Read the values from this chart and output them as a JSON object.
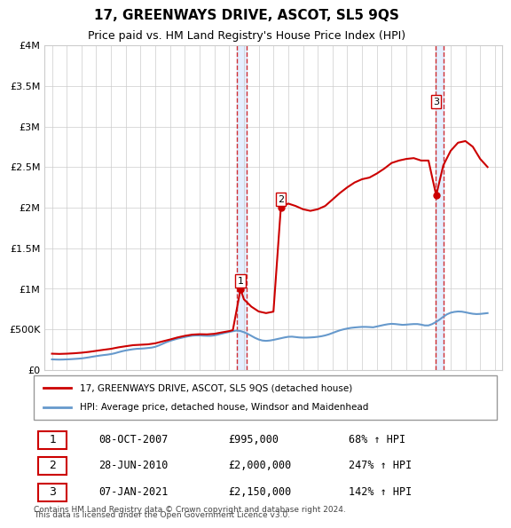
{
  "title": "17, GREENWAYS DRIVE, ASCOT, SL5 9QS",
  "subtitle": "Price paid vs. HM Land Registry's House Price Index (HPI)",
  "red_label": "17, GREENWAYS DRIVE, ASCOT, SL5 9QS (detached house)",
  "blue_label": "HPI: Average price, detached house, Windsor and Maidenhead",
  "footer1": "Contains HM Land Registry data © Crown copyright and database right 2024.",
  "footer2": "This data is licensed under the Open Government Licence v3.0.",
  "transactions": [
    {
      "num": 1,
      "date": "08-OCT-2007",
      "price": "£995,000",
      "hpi": "68% ↑ HPI",
      "year": 2007.77
    },
    {
      "num": 2,
      "date": "28-JUN-2010",
      "price": "£2,000,000",
      "hpi": "247% ↑ HPI",
      "year": 2010.5
    },
    {
      "num": 3,
      "date": "07-JAN-2021",
      "price": "£2,150,000",
      "hpi": "142% ↑ HPI",
      "year": 2021.02
    }
  ],
  "ylim": [
    0,
    4000000
  ],
  "yticks": [
    0,
    500000,
    1000000,
    1500000,
    2000000,
    2500000,
    3000000,
    3500000,
    4000000
  ],
  "ytick_labels": [
    "£0",
    "£500K",
    "£1M",
    "£1.5M",
    "£2M",
    "£2.5M",
    "£3M",
    "£3.5M",
    "£4M"
  ],
  "xlim_start": 1994.5,
  "xlim_end": 2025.5,
  "red_color": "#cc0000",
  "blue_color": "#6699cc",
  "shaded_regions": [
    {
      "start": 2007.5,
      "end": 2008.2
    },
    {
      "start": 2021.0,
      "end": 2021.5
    }
  ],
  "hpi_data": {
    "years": [
      1995,
      1995.25,
      1995.5,
      1995.75,
      1996,
      1996.25,
      1996.5,
      1996.75,
      1997,
      1997.25,
      1997.5,
      1997.75,
      1998,
      1998.25,
      1998.5,
      1998.75,
      1999,
      1999.25,
      1999.5,
      1999.75,
      2000,
      2000.25,
      2000.5,
      2000.75,
      2001,
      2001.25,
      2001.5,
      2001.75,
      2002,
      2002.25,
      2002.5,
      2002.75,
      2003,
      2003.25,
      2003.5,
      2003.75,
      2004,
      2004.25,
      2004.5,
      2004.75,
      2005,
      2005.25,
      2005.5,
      2005.75,
      2006,
      2006.25,
      2006.5,
      2006.75,
      2007,
      2007.25,
      2007.5,
      2007.75,
      2008,
      2008.25,
      2008.5,
      2008.75,
      2009,
      2009.25,
      2009.5,
      2009.75,
      2010,
      2010.25,
      2010.5,
      2010.75,
      2011,
      2011.25,
      2011.5,
      2011.75,
      2012,
      2012.25,
      2012.5,
      2012.75,
      2013,
      2013.25,
      2013.5,
      2013.75,
      2014,
      2014.25,
      2014.5,
      2014.75,
      2015,
      2015.25,
      2015.5,
      2015.75,
      2016,
      2016.25,
      2016.5,
      2016.75,
      2017,
      2017.25,
      2017.5,
      2017.75,
      2018,
      2018.25,
      2018.5,
      2018.75,
      2019,
      2019.25,
      2019.5,
      2019.75,
      2020,
      2020.25,
      2020.5,
      2020.75,
      2021,
      2021.25,
      2021.5,
      2021.75,
      2022,
      2022.25,
      2022.5,
      2022.75,
      2023,
      2023.25,
      2023.5,
      2023.75,
      2024,
      2024.25,
      2024.5
    ],
    "values": [
      130000,
      128000,
      127000,
      128000,
      130000,
      132000,
      135000,
      138000,
      142000,
      148000,
      155000,
      163000,
      170000,
      177000,
      183000,
      188000,
      195000,
      205000,
      218000,
      230000,
      240000,
      248000,
      255000,
      260000,
      262000,
      265000,
      270000,
      275000,
      285000,
      302000,
      322000,
      342000,
      358000,
      372000,
      385000,
      395000,
      405000,
      415000,
      422000,
      425000,
      425000,
      422000,
      420000,
      420000,
      425000,
      435000,
      447000,
      458000,
      468000,
      477000,
      485000,
      480000,
      465000,
      445000,
      420000,
      395000,
      375000,
      362000,
      358000,
      362000,
      370000,
      380000,
      390000,
      400000,
      408000,
      410000,
      405000,
      400000,
      398000,
      398000,
      400000,
      403000,
      408000,
      415000,
      425000,
      438000,
      455000,
      472000,
      488000,
      500000,
      510000,
      518000,
      523000,
      527000,
      530000,
      530000,
      528000,
      525000,
      535000,
      545000,
      555000,
      563000,
      568000,
      565000,
      560000,
      555000,
      558000,
      562000,
      565000,
      565000,
      558000,
      548000,
      548000,
      565000,
      590000,
      620000,
      655000,
      685000,
      705000,
      715000,
      720000,
      718000,
      710000,
      700000,
      692000,
      688000,
      690000,
      695000,
      700000
    ]
  },
  "red_data": {
    "years": [
      1995,
      1995.5,
      1996,
      1996.5,
      1997,
      1997.5,
      1998,
      1998.5,
      1999,
      1999.5,
      2000,
      2000.5,
      2001,
      2001.5,
      2002,
      2002.5,
      2003,
      2003.5,
      2004,
      2004.5,
      2005,
      2005.5,
      2006,
      2006.5,
      2007,
      2007.25,
      2007.77,
      2007.77,
      2008,
      2008.5,
      2009,
      2009.5,
      2010,
      2010.5,
      2010.5,
      2011,
      2011.5,
      2012,
      2012.5,
      2013,
      2013.5,
      2014,
      2014.5,
      2015,
      2015.5,
      2016,
      2016.5,
      2017,
      2017.5,
      2018,
      2018.5,
      2019,
      2019.5,
      2020,
      2020.5,
      2021.02,
      2021.02,
      2021.5,
      2022,
      2022.5,
      2023,
      2023.5,
      2024,
      2024.5
    ],
    "values": [
      200000,
      197000,
      200000,
      205000,
      212000,
      222000,
      235000,
      248000,
      260000,
      278000,
      292000,
      305000,
      310000,
      315000,
      328000,
      352000,
      375000,
      400000,
      420000,
      435000,
      440000,
      438000,
      445000,
      462000,
      478000,
      490000,
      995000,
      995000,
      870000,
      780000,
      720000,
      700000,
      718000,
      2000000,
      2000000,
      2050000,
      2020000,
      1980000,
      1960000,
      1980000,
      2020000,
      2100000,
      2180000,
      2250000,
      2310000,
      2350000,
      2370000,
      2420000,
      2480000,
      2550000,
      2580000,
      2600000,
      2610000,
      2580000,
      2580000,
      2150000,
      2150000,
      2520000,
      2700000,
      2800000,
      2820000,
      2750000,
      2600000,
      2500000
    ]
  }
}
